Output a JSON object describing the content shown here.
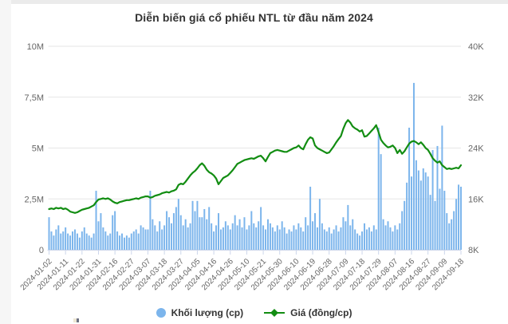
{
  "title": "Diễn biến giá cổ phiếu NTL từ đầu năm 2024",
  "legend": {
    "items": [
      {
        "label": "Khối lượng (cp)",
        "marker": "circle",
        "color": "#7cb5ec"
      },
      {
        "label": "Giá (đồng/cp)",
        "marker": "line-diamond",
        "color": "#128d12"
      }
    ]
  },
  "colors": {
    "bar": "#7cb5ec",
    "line": "#128d12",
    "grid": "#e6e6e6",
    "axis_line": "#ccd6eb",
    "axis_text": "#666666",
    "title_text": "#333333"
  },
  "chart_data": {
    "type": "combo",
    "title": "Diễn biến giá cổ phiếu NTL từ đầu năm 2024",
    "grid": true,
    "legend_position": "bottom",
    "x_tick_labels": [
      "2024-01-02",
      "2024-01-11",
      "2024-01-22",
      "2024-01-31",
      "2024-02-16",
      "2024-02-27",
      "2024-03-07",
      "2024-03-18",
      "2024-03-27",
      "2024-04-05",
      "2024-04-16",
      "2024-04-26",
      "2024-05-10",
      "2024-05-21",
      "2024-05-30",
      "2024-06-10",
      "2024-06-19",
      "2024-06-28",
      "2024-07-09",
      "2024-07-18",
      "2024-07-29",
      "2024-08-07",
      "2024-08-16",
      "2024-08-27",
      "2024-09-09",
      "2024-09-18"
    ],
    "x_tick_every": 7,
    "left_axis": {
      "tick_labels": [
        "0",
        "2,5M",
        "5M",
        "7,5M",
        "10M"
      ],
      "min": 0,
      "max": 10000000,
      "series": "Khối lượng (cp)"
    },
    "right_axis": {
      "tick_labels": [
        "8K",
        "16K",
        "24K",
        "32K",
        "40K"
      ],
      "min": 8000,
      "max": 40000,
      "series": "Giá (đồng/cp)"
    },
    "series": [
      {
        "name": "Khối lượng (cp)",
        "type": "bar",
        "axis": "left",
        "color": "#7cb5ec",
        "unit": "triệu cp",
        "values_millions": [
          1.6,
          0.9,
          0.7,
          1.0,
          1.2,
          0.8,
          0.9,
          1.1,
          0.8,
          0.7,
          0.9,
          1.0,
          0.8,
          0.6,
          0.9,
          1.1,
          0.8,
          0.7,
          0.6,
          0.8,
          2.9,
          1.4,
          1.8,
          1.1,
          0.9,
          0.7,
          0.8,
          1.7,
          1.9,
          0.9,
          0.7,
          0.8,
          0.6,
          0.7,
          0.6,
          0.8,
          0.9,
          1.0,
          0.8,
          1.2,
          1.1,
          1.0,
          1.0,
          2.9,
          1.5,
          1.2,
          0.9,
          1.4,
          1.0,
          1.2,
          1.9,
          1.6,
          1.3,
          1.8,
          2.1,
          2.5,
          1.7,
          1.2,
          1.5,
          1.1,
          1.3,
          2.4,
          1.9,
          2.4,
          1.6,
          1.6,
          2.0,
          1.5,
          2.1,
          1.3,
          0.9,
          1.2,
          1.8,
          1.0,
          1.1,
          1.4,
          1.2,
          1.0,
          1.3,
          1.7,
          1.2,
          1.5,
          1.1,
          1.6,
          1.0,
          1.2,
          1.9,
          1.3,
          1.1,
          1.4,
          2.1,
          1.2,
          1.0,
          1.5,
          1.3,
          1.1,
          0.9,
          1.2,
          1.0,
          1.4,
          1.1,
          0.8,
          1.0,
          0.9,
          1.2,
          1.0,
          1.3,
          1.1,
          0.9,
          1.6,
          1.2,
          3.1,
          1.4,
          1.8,
          1.1,
          2.5,
          1.3,
          1.0,
          0.9,
          1.1,
          0.8,
          1.0,
          1.2,
          0.9,
          1.1,
          1.6,
          1.4,
          2.2,
          1.2,
          1.5,
          1.0,
          0.8,
          0.7,
          0.9,
          1.3,
          1.0,
          1.1,
          0.9,
          1.2,
          1.0,
          6.0,
          4.7,
          1.5,
          1.2,
          1.4,
          1.1,
          0.9,
          1.2,
          1.0,
          1.3,
          1.9,
          2.4,
          3.3,
          6.0,
          3.6,
          8.2,
          4.4,
          3.9,
          3.4,
          4.0,
          3.8,
          3.6,
          2.7,
          4.9,
          2.4,
          5.1,
          3.0,
          6.1,
          2.9,
          1.8,
          1.3,
          1.5,
          1.9,
          2.5,
          3.2,
          3.1
        ]
      },
      {
        "name": "Giá (đồng/cp)",
        "type": "line",
        "axis": "right",
        "color": "#128d12",
        "unit": "nghìn đồng/cp",
        "values_thousands": [
          14.4,
          14.5,
          14.4,
          14.6,
          14.5,
          14.6,
          14.4,
          14.5,
          14.3,
          14.0,
          13.9,
          13.8,
          13.9,
          14.1,
          14.3,
          14.4,
          14.5,
          14.6,
          14.8,
          15.0,
          15.5,
          15.9,
          16.0,
          16.1,
          16.0,
          16.1,
          15.9,
          15.6,
          15.4,
          15.3,
          15.5,
          15.6,
          15.7,
          15.8,
          15.8,
          15.9,
          16.0,
          16.1,
          16.0,
          16.2,
          16.3,
          16.4,
          16.4,
          16.2,
          16.3,
          16.5,
          16.6,
          16.7,
          16.9,
          17.0,
          17.1,
          17.0,
          17.2,
          17.3,
          17.5,
          18.2,
          18.4,
          18.3,
          18.7,
          19.2,
          19.7,
          20.1,
          20.4,
          20.8,
          21.3,
          21.6,
          21.2,
          20.6,
          20.2,
          20.0,
          19.7,
          19.2,
          18.3,
          18.8,
          19.3,
          19.5,
          19.7,
          20.1,
          20.5,
          21.0,
          21.5,
          21.7,
          21.9,
          22.1,
          22.2,
          22.3,
          22.4,
          22.3,
          22.5,
          22.7,
          22.8,
          22.4,
          21.9,
          22.6,
          23.2,
          23.4,
          23.6,
          23.7,
          23.6,
          23.5,
          23.4,
          23.4,
          23.6,
          23.8,
          24.0,
          24.1,
          24.4,
          24.0,
          23.8,
          24.6,
          25.3,
          25.7,
          25.5,
          24.4,
          24.0,
          23.8,
          23.6,
          23.4,
          23.2,
          23.3,
          23.8,
          24.3,
          24.9,
          25.4,
          25.9,
          27.0,
          27.9,
          28.4,
          28.0,
          27.4,
          27.1,
          26.9,
          26.6,
          26.8,
          25.8,
          25.9,
          26.3,
          26.7,
          27.1,
          27.6,
          26.5,
          25.3,
          24.8,
          24.4,
          24.1,
          24.2,
          24.4,
          24.0,
          23.2,
          23.7,
          23.1,
          23.5,
          24.1,
          24.7,
          25.0,
          25.1,
          24.9,
          24.6,
          24.9,
          24.5,
          24.0,
          23.7,
          23.1,
          22.4,
          22.0,
          21.7,
          21.9,
          21.3,
          21.0,
          20.7,
          20.8,
          20.7,
          20.8,
          20.9,
          20.8,
          21.3
        ]
      }
    ]
  }
}
